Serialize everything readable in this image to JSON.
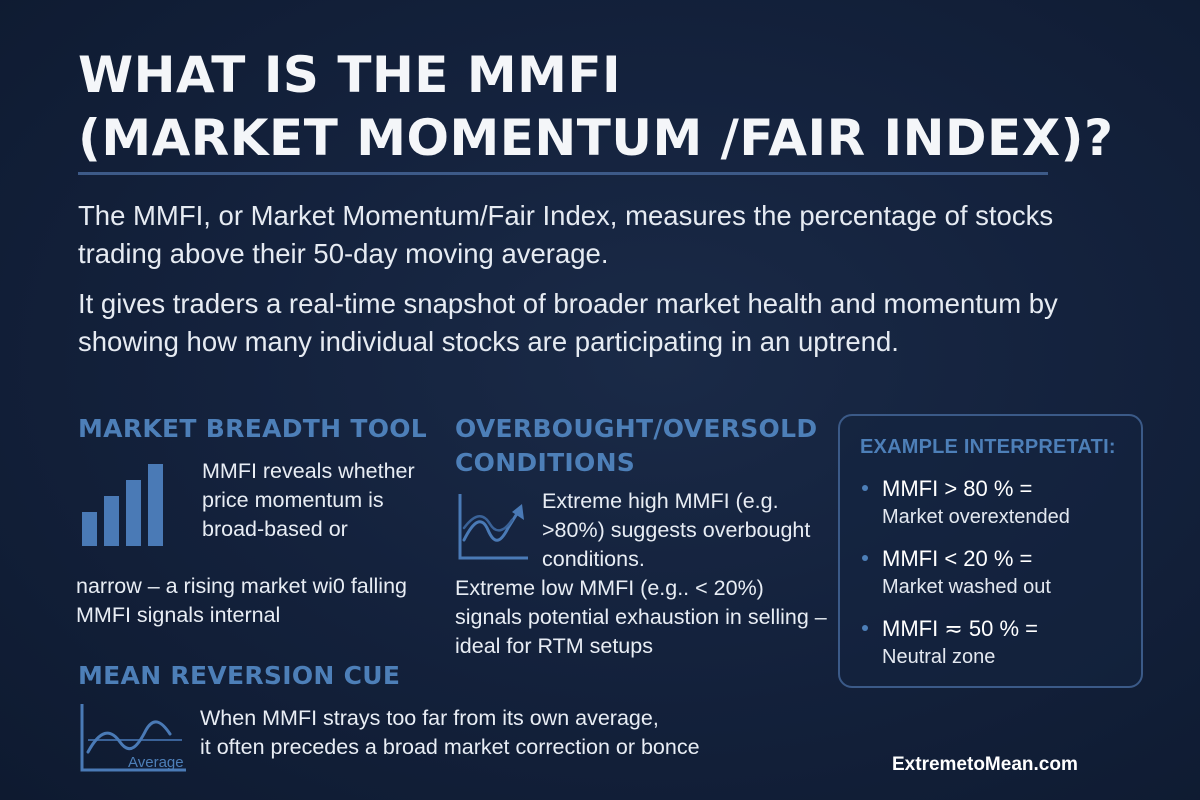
{
  "title": {
    "line1": "WHAT IS THE MMFI",
    "line2": "(MARKET MOMENTUM /FAIR INDEX)?"
  },
  "intro": {
    "paragraph1": "The MMFI, or Market Momentum/Fair Index, measures the percentage of stocks trading above their 50-day moving average.",
    "paragraph2": "It gives traders a real-time snapshot of broader market health and momentum by showing how many individual stocks are participating in an uptrend."
  },
  "market_breadth": {
    "heading": "MARKET BREADTH TOOL",
    "text_top": "MMFI reveals whether price momentum is broad-based or",
    "text_bottom": "narrow – a rising market wi0 falling MMFI signals internal",
    "icon": "bar-chart-icon"
  },
  "overbought": {
    "heading": "OVERBOUGHT/OVERSOLD CONDITIONS",
    "text_top": "Extreme high MMFI (e.g. >80%) suggests overbought conditions.",
    "text_bottom": "Extreme low MMFI (e.g.. < 20%) signals potential exhaustion in selling – ideal for RTM setups",
    "icon": "trend-arrow-icon"
  },
  "example": {
    "heading": "EXAMPLE INTERPRETATI:",
    "items": [
      {
        "condition": "MMFI > 80 % =",
        "meaning": "Market overextended"
      },
      {
        "condition": "MMFI < 20 % =",
        "meaning": "Market washed out"
      },
      {
        "condition": "MMFI ≂ 50 % =",
        "meaning": "Neutral zone"
      }
    ]
  },
  "mean_reversion": {
    "heading": "MEAN REVERSION CUE",
    "line1": "When MMFI strays too far from its own average,",
    "line2": "it often precedes a broad market correction or bonce",
    "icon": "wave-chart-icon",
    "icon_label": "Average"
  },
  "brand": "ExtremetoMean.com",
  "colors": {
    "background": "#14223d",
    "accent": "#4d7fb8",
    "text": "#ffffff",
    "divider": "#3d5a88"
  }
}
